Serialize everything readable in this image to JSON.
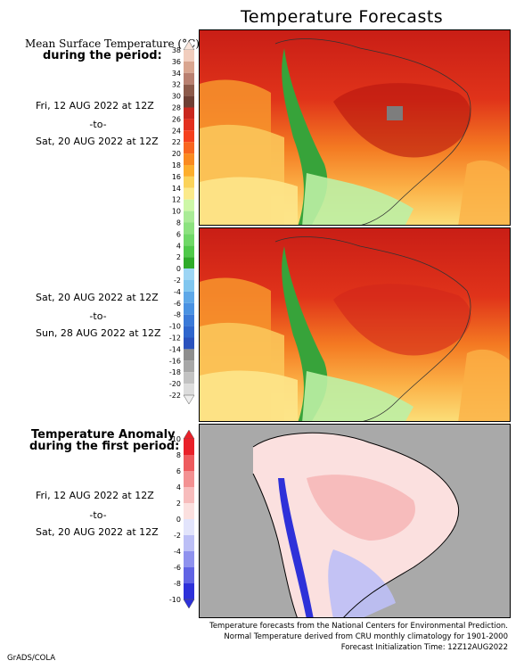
{
  "title": "Temperature Forecasts",
  "section1": {
    "heading_line1": "Mean Surface Temperature (°C)",
    "heading_line2": "during the period:"
  },
  "period1": {
    "start": "Fri, 12 AUG 2022 at 12Z",
    "sep": "-to-",
    "end": "Sat, 20 AUG 2022 at 12Z"
  },
  "period2": {
    "start": "Sat, 20 AUG 2022 at 12Z",
    "sep": "-to-",
    "end": "Sun, 28 AUG 2022 at 12Z"
  },
  "section3": {
    "heading_line1": "Temperature Anomaly",
    "heading_line2": "during the first period:"
  },
  "period3": {
    "start": "Fri, 12 AUG 2022 at 12Z",
    "sep": "-to-",
    "end": "Sat, 20 AUG 2022 at 12Z"
  },
  "temp_colorbar": {
    "ticks": [
      "38",
      "36",
      "34",
      "32",
      "30",
      "28",
      "26",
      "24",
      "22",
      "20",
      "18",
      "16",
      "14",
      "12",
      "10",
      "8",
      "6",
      "4",
      "2",
      "0",
      "-2",
      "-4",
      "-6",
      "-8",
      "-10",
      "-12",
      "-14",
      "-16",
      "-18",
      "-20",
      "-22"
    ],
    "colors": [
      "#f1cdbd",
      "#d9a58f",
      "#b98070",
      "#8c5a4a",
      "#6e3f34",
      "#c9281f",
      "#e3301f",
      "#f5401d",
      "#f8661f",
      "#fa8a20",
      "#fdae2c",
      "#fbd35a",
      "#fbea8b",
      "#cdf7a7",
      "#a9eb96",
      "#8ce27f",
      "#6fd867",
      "#4fc94a",
      "#2eab2a",
      "#9dd5f4",
      "#80c6ef",
      "#5ea8e8",
      "#4a92e2",
      "#3b7ad8",
      "#2f66cd",
      "#2a52bd",
      "#8e8e8e",
      "#a7a7a7",
      "#c2c2c2",
      "#dcdcdc"
    ]
  },
  "anom_colorbar": {
    "ticks": [
      "10",
      "8",
      "6",
      "4",
      "2",
      "0",
      "-2",
      "-4",
      "-6",
      "-8",
      "-10"
    ],
    "colors": [
      "#e9212a",
      "#ee5b5e",
      "#f39192",
      "#f7bcbc",
      "#fbe0df",
      "#e2e4fb",
      "#bcbff6",
      "#8f92ee",
      "#6164e4",
      "#2e31d9"
    ]
  },
  "map_colors": {
    "hot": "#c91e16",
    "warm": "#ee4a1c",
    "mild": "#fbb046",
    "cool": "#fbe68a",
    "cold": "#b6f0a0",
    "andes": "#37a33a",
    "ocean_gray": "#a9a9a9",
    "anom_pos": "#f7c7c6",
    "anom_neg": "#c3c6f6"
  },
  "footer": {
    "line1": "Temperature forecasts from the National Centers for Environmental Prediction.",
    "line2": "Normal Temperature derived from CRU monthly climatology for 1901-2000",
    "line3": "Forecast Initialization Time: 12Z12AUG2022"
  },
  "logo": "GrADS/COLA"
}
